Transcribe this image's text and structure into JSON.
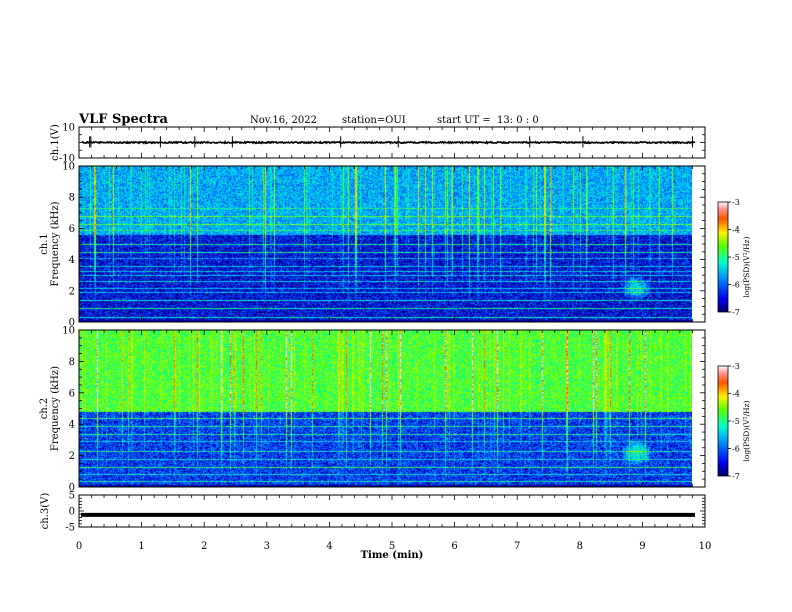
{
  "header": {
    "title": "VLF Spectra",
    "date": "Nov.16, 2022",
    "station": "station=OUI",
    "start_label": "start  UT =",
    "start_time": "13: 0  : 0"
  },
  "chart_data": [
    {
      "type": "line",
      "name": "ch1-waveform",
      "ylabel": "ch.1(V)",
      "ylim": [
        -10,
        10
      ],
      "y_ticks": [
        "10",
        "-10"
      ],
      "x_range": [
        0,
        10
      ],
      "baseline_value": 0,
      "spikes": [
        0.17,
        0.19,
        1.3,
        1.85,
        2.45,
        4.18,
        5.1,
        7.2,
        8.05,
        9.8
      ],
      "spike_peak_value": 4
    },
    {
      "type": "heatmap",
      "name": "ch1-spectrogram",
      "ylabel_top": "ch.1",
      "ylabel": "Frequency  (kHz)",
      "ylim": [
        0,
        10
      ],
      "y_ticks": [
        "0",
        "2",
        "4",
        "6",
        "8",
        "10"
      ],
      "xlim": [
        0,
        10
      ],
      "data_extent_min": 9.8,
      "colorbar": {
        "label": "log(PSD)(V²/Hz)",
        "range": [
          -7,
          -3
        ],
        "ticks": [
          "-3",
          "-4",
          "-5",
          "-6",
          "-7"
        ]
      },
      "band_edge_khz": 5.6,
      "background_level": -6.5,
      "upper_band_level": -5.8,
      "whistler_feature": {
        "time_min": 8.9,
        "freq_khz": 2.2
      },
      "horizontal_lines_khz": [
        0.3,
        0.9,
        1.4,
        1.9,
        2.2,
        2.6,
        3.0,
        3.3,
        3.6,
        4.1,
        4.5,
        5.0,
        5.9,
        6.3,
        6.8,
        7.3
      ]
    },
    {
      "type": "heatmap",
      "name": "ch2-spectrogram",
      "ylabel_top": "ch.2",
      "ylabel": "Frequency  (kHz)",
      "ylim": [
        0,
        10
      ],
      "y_ticks": [
        "0",
        "2",
        "4",
        "6",
        "8",
        "10"
      ],
      "xlim": [
        0,
        10
      ],
      "data_extent_min": 9.8,
      "colorbar": {
        "label": "log(PSD)(V²/Hz)",
        "range": [
          -7,
          -3
        ],
        "ticks": [
          "-3",
          "-4",
          "-5",
          "-6",
          "-7"
        ]
      },
      "band_edge_khz": 4.8,
      "background_level": -6.3,
      "upper_band_level": -4.9,
      "whistler_feature": {
        "time_min": 8.9,
        "freq_khz": 2.2
      },
      "horizontal_lines_khz": [
        0.4,
        0.8,
        1.3,
        1.8,
        2.3,
        2.9,
        3.4,
        3.9,
        4.4
      ]
    },
    {
      "type": "line",
      "name": "ch3-waveform",
      "ylabel": "ch.3(V)",
      "ylim": [
        -5,
        5
      ],
      "y_ticks": [
        "5",
        "0",
        "-5"
      ],
      "x_range": [
        0,
        10
      ],
      "baseline_value": -1.2
    }
  ],
  "x_axis": {
    "label": "Time  (min)",
    "ticks": [
      "0",
      "1",
      "2",
      "3",
      "4",
      "5",
      "6",
      "7",
      "8",
      "9",
      "10"
    ],
    "range": [
      0,
      10
    ]
  },
  "colors": {
    "colormap": [
      "#000066",
      "#0000cc",
      "#0066ff",
      "#00ccff",
      "#00ff99",
      "#66ff00",
      "#ccff00",
      "#ffcc00",
      "#ff3300",
      "#ffffff"
    ]
  }
}
